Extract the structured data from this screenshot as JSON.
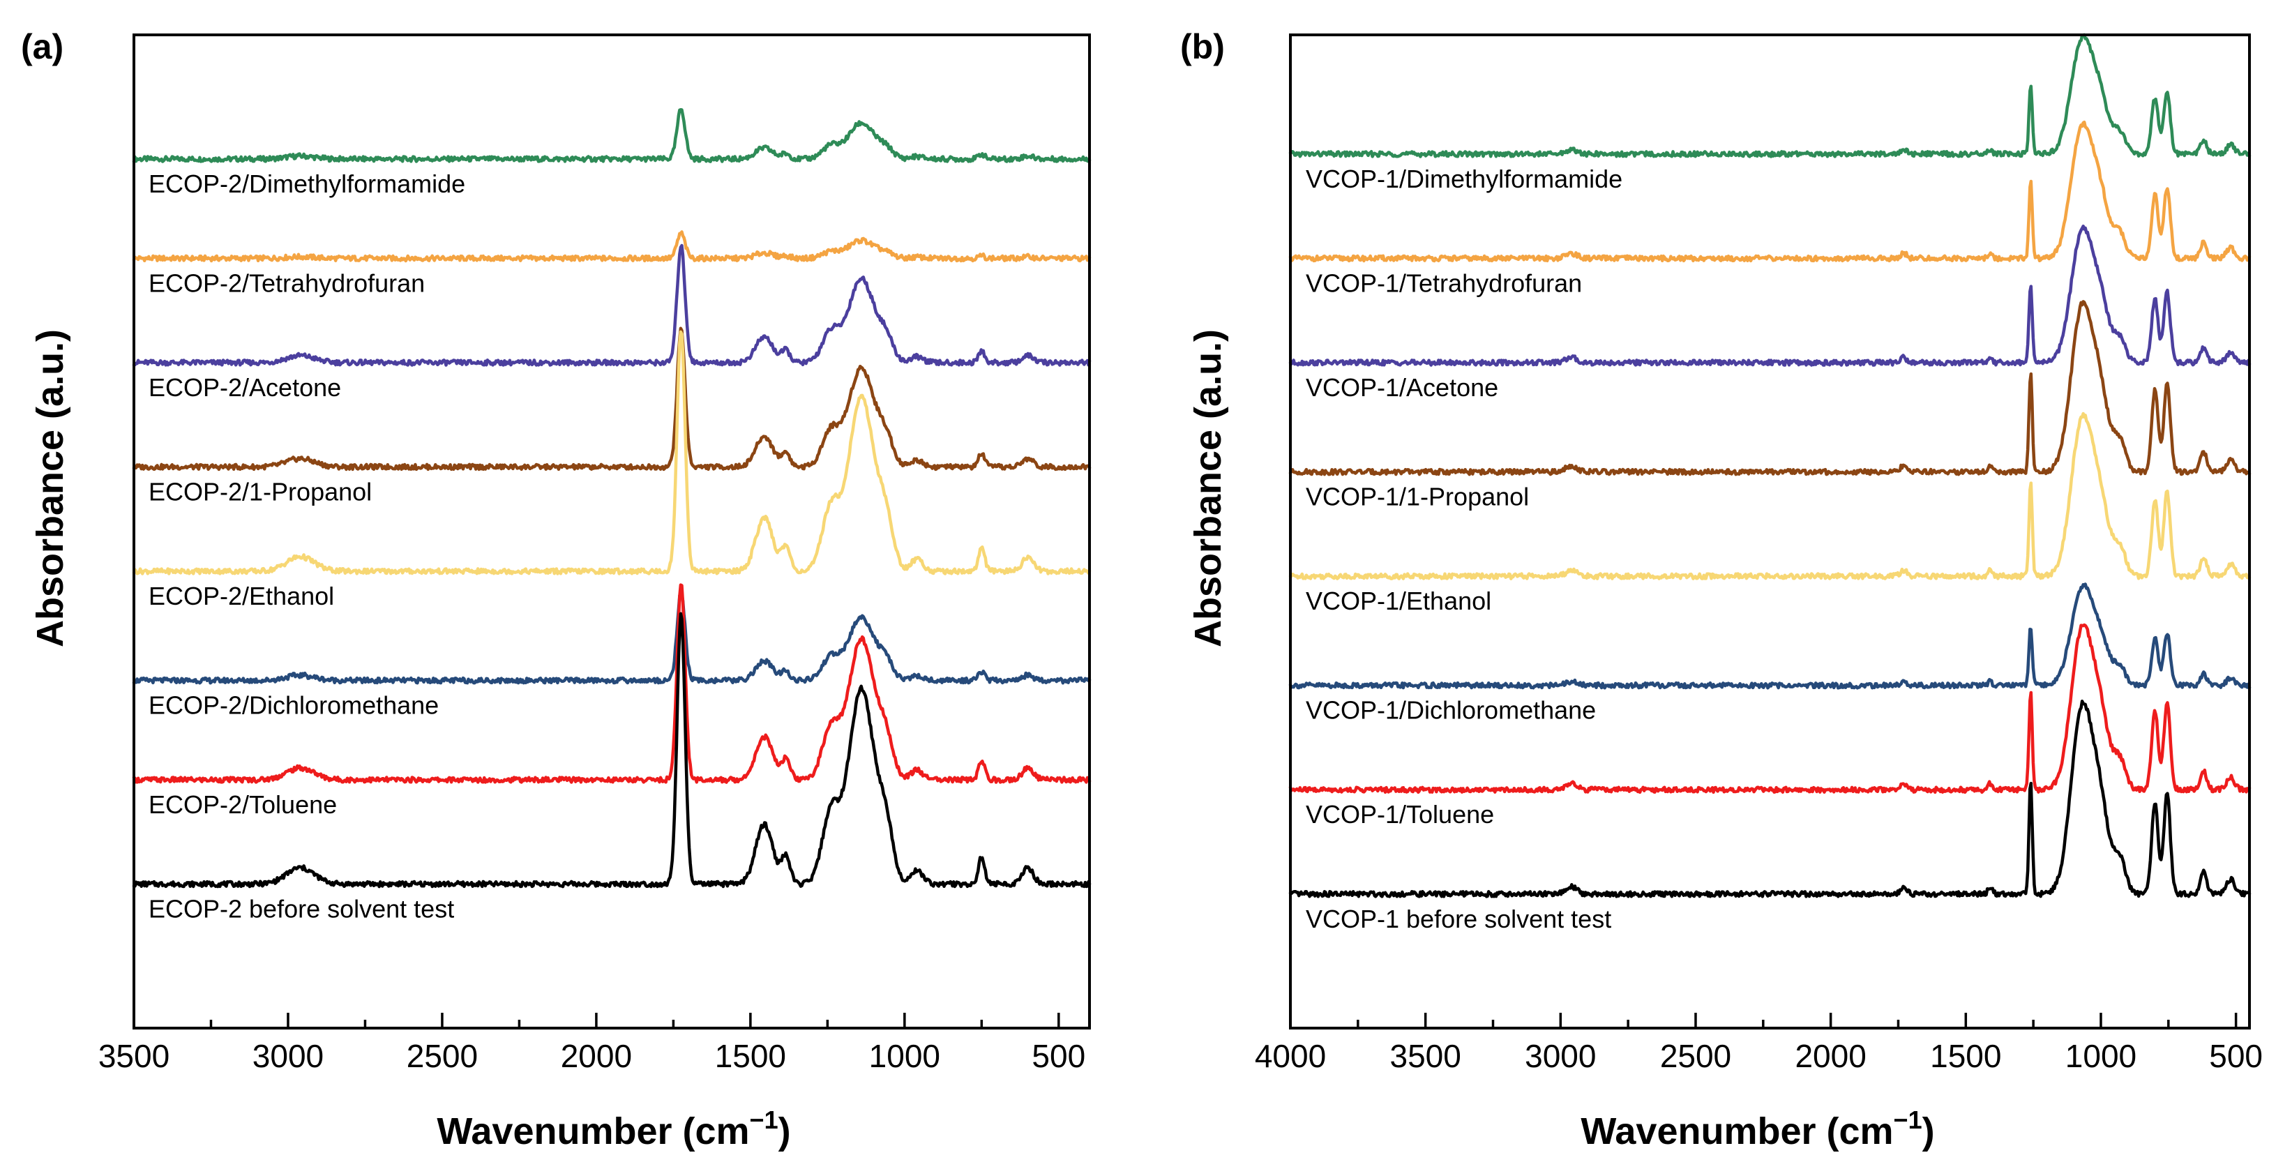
{
  "chart_data": [
    {
      "type": "line",
      "panel_label": "(a)",
      "xlabel": "Wavenumber (cm",
      "xlabel_sup": "−1",
      "xlabel_close": ")",
      "ylabel": "Absorbance (a.u.)",
      "xlim": [
        3500,
        400
      ],
      "ylim": [
        0,
        1
      ],
      "x_reversed": true,
      "xticks": [
        3500,
        3000,
        2500,
        2000,
        1500,
        1000,
        500
      ],
      "xtick_labels": [
        "3500",
        "3000",
        "2500",
        "2000",
        "1500",
        "1000",
        "500"
      ],
      "series": [
        {
          "name": "ECOP-2/Dimethylformamide",
          "color": "#2e8b57",
          "offset": 0.875,
          "scale": 0.12
        },
        {
          "name": "ECOP-2/Tetrahydrofuran",
          "color": "#f4a442",
          "offset": 0.775,
          "scale": 0.06
        },
        {
          "name": "ECOP-2/Acetone",
          "color": "#4b3f9e",
          "offset": 0.67,
          "scale": 0.28
        },
        {
          "name": "ECOP-2/1-Propanol",
          "color": "#8b4513",
          "offset": 0.565,
          "scale": 0.33
        },
        {
          "name": "ECOP-2/Ethanol",
          "color": "#f7d774",
          "offset": 0.46,
          "scale": 0.58
        },
        {
          "name": "ECOP-2/Dichloromethane",
          "color": "#264a7a",
          "offset": 0.35,
          "scale": 0.21
        },
        {
          "name": "ECOP-2/Toluene",
          "color": "#ee1c1c",
          "offset": 0.25,
          "scale": 0.47
        },
        {
          "name": "ECOP-2 before solvent test",
          "color": "#000000",
          "offset": 0.145,
          "scale": 0.65
        }
      ],
      "peaks": [
        {
          "x": 2960,
          "h": 0.06,
          "w": 45
        },
        {
          "x": 1725,
          "h": 1.0,
          "w": 13
        },
        {
          "x": 1455,
          "h": 0.22,
          "w": 28
        },
        {
          "x": 1385,
          "h": 0.1,
          "w": 14
        },
        {
          "x": 1240,
          "h": 0.25,
          "w": 28
        },
        {
          "x": 1140,
          "h": 0.72,
          "w": 42
        },
        {
          "x": 1060,
          "h": 0.18,
          "w": 24
        },
        {
          "x": 960,
          "h": 0.05,
          "w": 20
        },
        {
          "x": 750,
          "h": 0.1,
          "w": 10
        },
        {
          "x": 600,
          "h": 0.06,
          "w": 18
        }
      ]
    },
    {
      "type": "line",
      "panel_label": "(b)",
      "xlabel": "Wavenumber (cm",
      "xlabel_sup": "−1",
      "xlabel_close": ")",
      "ylabel": "Absorbance (a.u.)",
      "xlim": [
        4000,
        450
      ],
      "ylim": [
        0,
        1
      ],
      "x_reversed": true,
      "xticks": [
        4000,
        3500,
        3000,
        2500,
        2000,
        1500,
        1000,
        500
      ],
      "xtick_labels": [
        "4000",
        "3500",
        "3000",
        "2500",
        "2000",
        "1500",
        "1000",
        "500"
      ],
      "series": [
        {
          "name": "VCOP-1/Dimethylformamide",
          "color": "#2e8b57",
          "offset": 0.88,
          "scale": 0.27
        },
        {
          "name": "VCOP-1/Tetrahydrofuran",
          "color": "#f4a442",
          "offset": 0.775,
          "scale": 0.31
        },
        {
          "name": "VCOP-1/Acetone",
          "color": "#4b3f9e",
          "offset": 0.67,
          "scale": 0.31
        },
        {
          "name": "VCOP-1/1-Propanol",
          "color": "#8b4513",
          "offset": 0.56,
          "scale": 0.39
        },
        {
          "name": "VCOP-1/Ethanol",
          "color": "#f7d774",
          "offset": 0.455,
          "scale": 0.37
        },
        {
          "name": "VCOP-1/Dichloromethane",
          "color": "#264a7a",
          "offset": 0.345,
          "scale": 0.23
        },
        {
          "name": "VCOP-1/Toluene",
          "color": "#ee1c1c",
          "offset": 0.24,
          "scale": 0.38
        },
        {
          "name": "VCOP-1 before solvent test",
          "color": "#000000",
          "offset": 0.135,
          "scale": 0.44
        }
      ],
      "peaks": [
        {
          "x": 2960,
          "h": 0.04,
          "w": 20
        },
        {
          "x": 1730,
          "h": 0.04,
          "w": 12
        },
        {
          "x": 1410,
          "h": 0.04,
          "w": 8
        },
        {
          "x": 1260,
          "h": 0.62,
          "w": 6
        },
        {
          "x": 1070,
          "h": 1.0,
          "w": 40
        },
        {
          "x": 1000,
          "h": 0.4,
          "w": 32
        },
        {
          "x": 930,
          "h": 0.18,
          "w": 22
        },
        {
          "x": 800,
          "h": 0.5,
          "w": 12
        },
        {
          "x": 755,
          "h": 0.55,
          "w": 12
        },
        {
          "x": 620,
          "h": 0.12,
          "w": 12
        },
        {
          "x": 520,
          "h": 0.08,
          "w": 15
        }
      ]
    }
  ]
}
